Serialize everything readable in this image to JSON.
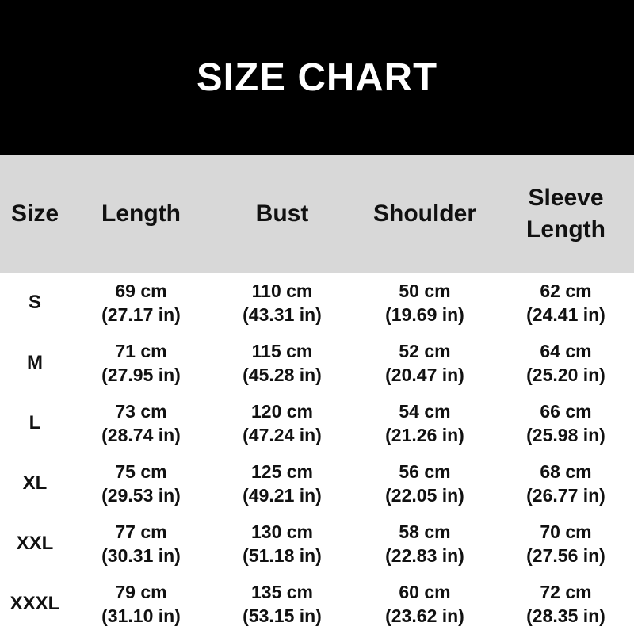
{
  "colors": {
    "banner_bg": "#000000",
    "banner_text": "#ffffff",
    "header_bg": "#d8d8d8",
    "body_bg": "#ffffff",
    "text": "#111111"
  },
  "banner": {
    "title": "SIZE CHART"
  },
  "chart_data": {
    "type": "table",
    "title": "SIZE CHART",
    "columns": [
      "Size",
      "Length",
      "Bust",
      "Shoulder",
      "Sleeve Length"
    ],
    "units": [
      "cm",
      "in"
    ],
    "rows": [
      {
        "size": "S",
        "length_cm": 69,
        "length_in": 27.17,
        "bust_cm": 110,
        "bust_in": 43.31,
        "shoulder_cm": 50,
        "shoulder_in": 19.69,
        "sleeve_cm": 62,
        "sleeve_in": 24.41
      },
      {
        "size": "M",
        "length_cm": 71,
        "length_in": 27.95,
        "bust_cm": 115,
        "bust_in": 45.28,
        "shoulder_cm": 52,
        "shoulder_in": 20.47,
        "sleeve_cm": 64,
        "sleeve_in": 25.2
      },
      {
        "size": "L",
        "length_cm": 73,
        "length_in": 28.74,
        "bust_cm": 120,
        "bust_in": 47.24,
        "shoulder_cm": 54,
        "shoulder_in": 21.26,
        "sleeve_cm": 66,
        "sleeve_in": 25.98
      },
      {
        "size": "XL",
        "length_cm": 75,
        "length_in": 29.53,
        "bust_cm": 125,
        "bust_in": 49.21,
        "shoulder_cm": 56,
        "shoulder_in": 22.05,
        "sleeve_cm": 68,
        "sleeve_in": 26.77
      },
      {
        "size": "XXL",
        "length_cm": 77,
        "length_in": 30.31,
        "bust_cm": 130,
        "bust_in": 51.18,
        "shoulder_cm": 58,
        "shoulder_in": 22.83,
        "sleeve_cm": 70,
        "sleeve_in": 27.56
      },
      {
        "size": "XXXL",
        "length_cm": 79,
        "length_in": 31.1,
        "bust_cm": 135,
        "bust_in": 53.15,
        "shoulder_cm": 60,
        "shoulder_in": 23.62,
        "sleeve_cm": 72,
        "sleeve_in": 28.35
      }
    ]
  },
  "table": {
    "headers": [
      "Size",
      "Length",
      "Bust",
      "Shoulder",
      "Sleeve Length"
    ],
    "rows": [
      {
        "size": "S",
        "length": {
          "cm": "69 cm",
          "in": "(27.17 in)"
        },
        "bust": {
          "cm": "110 cm",
          "in": "(43.31 in)"
        },
        "shoulder": {
          "cm": "50 cm",
          "in": "(19.69 in)"
        },
        "sleeve": {
          "cm": "62 cm",
          "in": "(24.41 in)"
        }
      },
      {
        "size": "M",
        "length": {
          "cm": "71 cm",
          "in": "(27.95 in)"
        },
        "bust": {
          "cm": "115 cm",
          "in": "(45.28 in)"
        },
        "shoulder": {
          "cm": "52 cm",
          "in": "(20.47 in)"
        },
        "sleeve": {
          "cm": "64 cm",
          "in": "(25.20 in)"
        }
      },
      {
        "size": "L",
        "length": {
          "cm": "73 cm",
          "in": "(28.74 in)"
        },
        "bust": {
          "cm": "120 cm",
          "in": "(47.24 in)"
        },
        "shoulder": {
          "cm": "54 cm",
          "in": "(21.26 in)"
        },
        "sleeve": {
          "cm": "66 cm",
          "in": "(25.98 in)"
        }
      },
      {
        "size": "XL",
        "length": {
          "cm": "75 cm",
          "in": "(29.53 in)"
        },
        "bust": {
          "cm": "125 cm",
          "in": "(49.21 in)"
        },
        "shoulder": {
          "cm": "56 cm",
          "in": "(22.05 in)"
        },
        "sleeve": {
          "cm": "68 cm",
          "in": "(26.77 in)"
        }
      },
      {
        "size": "XXL",
        "length": {
          "cm": "77 cm",
          "in": "(30.31 in)"
        },
        "bust": {
          "cm": "130 cm",
          "in": "(51.18 in)"
        },
        "shoulder": {
          "cm": "58 cm",
          "in": "(22.83 in)"
        },
        "sleeve": {
          "cm": "70 cm",
          "in": "(27.56 in)"
        }
      },
      {
        "size": "XXXL",
        "length": {
          "cm": "79 cm",
          "in": "(31.10 in)"
        },
        "bust": {
          "cm": "135 cm",
          "in": "(53.15 in)"
        },
        "shoulder": {
          "cm": "60 cm",
          "in": "(23.62 in)"
        },
        "sleeve": {
          "cm": "72 cm",
          "in": "(28.35 in)"
        }
      }
    ]
  }
}
